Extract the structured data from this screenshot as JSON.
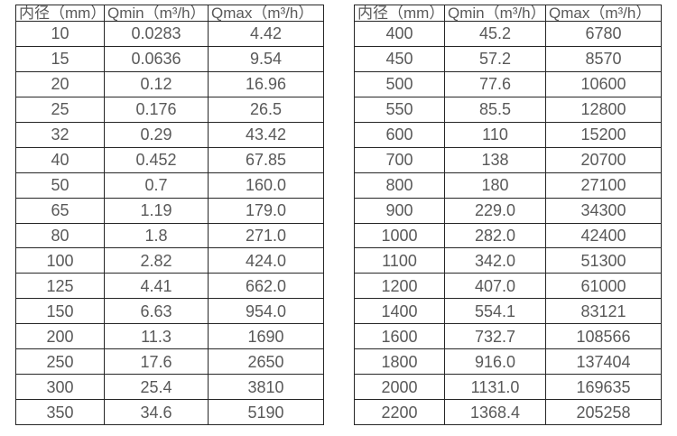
{
  "page": {
    "background_color": "#ffffff",
    "text_color": "#595959",
    "border_color": "#262626"
  },
  "tables": [
    {
      "id": "flow-table-small-diameters",
      "headers": [
        "内径（mm）",
        "Qmin（m³/h）",
        "Qmax（m³/h）"
      ],
      "rows": [
        [
          "10",
          "0.0283",
          "4.42"
        ],
        [
          "15",
          "0.0636",
          "9.54"
        ],
        [
          "20",
          "0.12",
          "16.96"
        ],
        [
          "25",
          "0.176",
          "26.5"
        ],
        [
          "32",
          "0.29",
          "43.42"
        ],
        [
          "40",
          "0.452",
          "67.85"
        ],
        [
          "50",
          "0.7",
          "160.0"
        ],
        [
          "65",
          "1.19",
          "179.0"
        ],
        [
          "80",
          "1.8",
          "271.0"
        ],
        [
          "100",
          "2.82",
          "424.0"
        ],
        [
          "125",
          "4.41",
          "662.0"
        ],
        [
          "150",
          "6.63",
          "954.0"
        ],
        [
          "200",
          "11.3",
          "1690"
        ],
        [
          "250",
          "17.6",
          "2650"
        ],
        [
          "300",
          "25.4",
          "3810"
        ],
        [
          "350",
          "34.6",
          "5190"
        ]
      ]
    },
    {
      "id": "flow-table-large-diameters",
      "headers": [
        "内径（mm）",
        "Qmin（m³/h）",
        "Qmax（m³/h）"
      ],
      "rows": [
        [
          "400",
          "45.2",
          "6780"
        ],
        [
          "450",
          "57.2",
          "8570"
        ],
        [
          "500",
          "77.6",
          "10600"
        ],
        [
          "550",
          "85.5",
          "12800"
        ],
        [
          "600",
          "110",
          "15200"
        ],
        [
          "700",
          "138",
          "20700"
        ],
        [
          "800",
          "180",
          "27100"
        ],
        [
          "900",
          "229.0",
          "34300"
        ],
        [
          "1000",
          "282.0",
          "42400"
        ],
        [
          "1100",
          "342.0",
          "51300"
        ],
        [
          "1200",
          "407.0",
          "61000"
        ],
        [
          "1400",
          "554.1",
          "83121"
        ],
        [
          "1600",
          "732.7",
          "108566"
        ],
        [
          "1800",
          "916.0",
          "137404"
        ],
        [
          "2000",
          "1131.0",
          "169635"
        ],
        [
          "2200",
          "1368.4",
          "205258"
        ]
      ]
    }
  ]
}
